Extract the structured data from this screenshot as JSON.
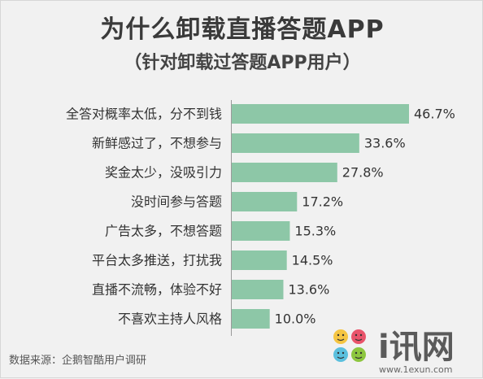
{
  "title": "为什么卸载直播答题APP",
  "subtitle": "（针对卸载过答题APP用户）",
  "source": "数据来源：企鹅智酷用户调研",
  "watermark": {
    "brand_text": "i讯网",
    "url": "www.1exun.com"
  },
  "colors": {
    "bar": "#8dc7a7",
    "text": "#333333",
    "background": "#f1f1f1"
  },
  "chart_data": {
    "type": "bar",
    "orientation": "horizontal",
    "title": "为什么卸载直播答题APP",
    "subtitle": "（针对卸载过答题APP用户）",
    "categories": [
      "全答对概率太低，分不到钱",
      "新鲜感过了，不想参与",
      "奖金太少，没吸引力",
      "没时间参与答题",
      "广告太多，不想答题",
      "平台太多推送，打扰我",
      "直播不流畅，体验不好",
      "不喜欢主持人风格"
    ],
    "values": [
      46.7,
      33.6,
      27.8,
      17.2,
      15.3,
      14.5,
      13.6,
      10.0
    ],
    "value_labels": [
      "46.7%",
      "33.6%",
      "27.8%",
      "17.2%",
      "15.3%",
      "14.5%",
      "13.6%",
      "10.0%"
    ],
    "unit": "%",
    "xlim": [
      0,
      50
    ],
    "grid": false,
    "legend": "none"
  }
}
